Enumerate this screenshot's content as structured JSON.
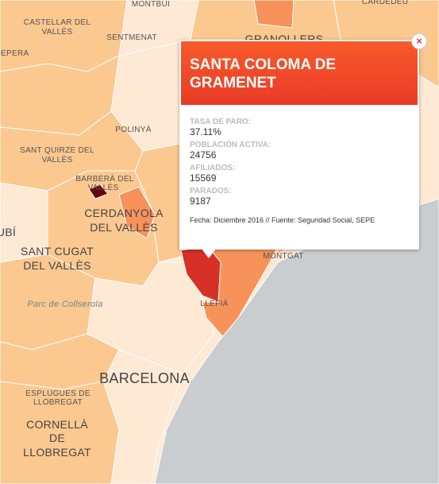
{
  "map_labels": [
    {
      "lines": [
        "MONTBUI"
      ]
    },
    {
      "lines": [
        "CASTELLAR DEL",
        "VALLÈS"
      ]
    },
    {
      "lines": [
        "SENTMENAT"
      ]
    },
    {
      "lines": [
        "GRANOLLERS"
      ]
    },
    {
      "lines": [
        "CARDEDEU"
      ]
    },
    {
      "lines": [
        "DEPERA"
      ]
    },
    {
      "lines": [
        "POLINYÀ"
      ]
    },
    {
      "lines": [
        "SANT QUIRZE DEL",
        "VALLÈS"
      ]
    },
    {
      "lines": [
        "BARBERÀ DEL",
        "VALLÈS"
      ]
    },
    {
      "lines": [
        "CERDANYOLA",
        "DEL VALLÈS"
      ]
    },
    {
      "lines": [
        "UBÍ"
      ]
    },
    {
      "lines": [
        "SANT CUGAT",
        "DEL VALLÈS"
      ]
    },
    {
      "lines": [
        "Parc de Collserola"
      ]
    },
    {
      "lines": [
        "MONTGAT"
      ]
    },
    {
      "lines": [
        "LLEFIÀ"
      ]
    },
    {
      "lines": [
        "BARCELONA"
      ]
    },
    {
      "lines": [
        "ESPLUGUES DE",
        "LLOBREGAT"
      ]
    },
    {
      "lines": [
        "CORNELLÀ",
        "DE",
        "LLOBREGAT"
      ]
    }
  ],
  "popup": {
    "title": "SANTA COLOMA DE GRAMENET",
    "close": "×",
    "fields": [
      {
        "label": "TASA DE PARO:",
        "value": "37.11%"
      },
      {
        "label": "POBLACIÓN ACTIVA:",
        "value": "24756"
      },
      {
        "label": "AFILIADOS:",
        "value": "15569"
      },
      {
        "label": "PARADOS:",
        "value": "9187"
      }
    ],
    "footer": "Fecha: Diciembre 2016 // Fuente: Seguridad Social, SEPE"
  }
}
